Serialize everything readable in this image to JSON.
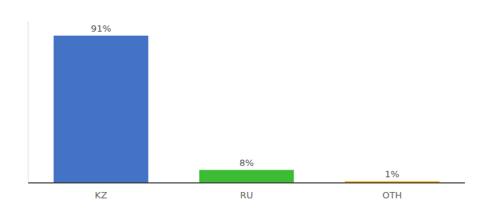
{
  "chart_data": {
    "type": "bar",
    "categories": [
      "KZ",
      "RU",
      "OTH"
    ],
    "values": [
      91,
      8,
      1
    ],
    "value_labels": [
      "91%",
      "8%",
      "1%"
    ],
    "colors": [
      "#4472c4",
      "#3dbb35",
      "#f0a800"
    ],
    "ylim": [
      0,
      100
    ],
    "data_labels": true,
    "tick_labels": "x",
    "grid": false
  }
}
